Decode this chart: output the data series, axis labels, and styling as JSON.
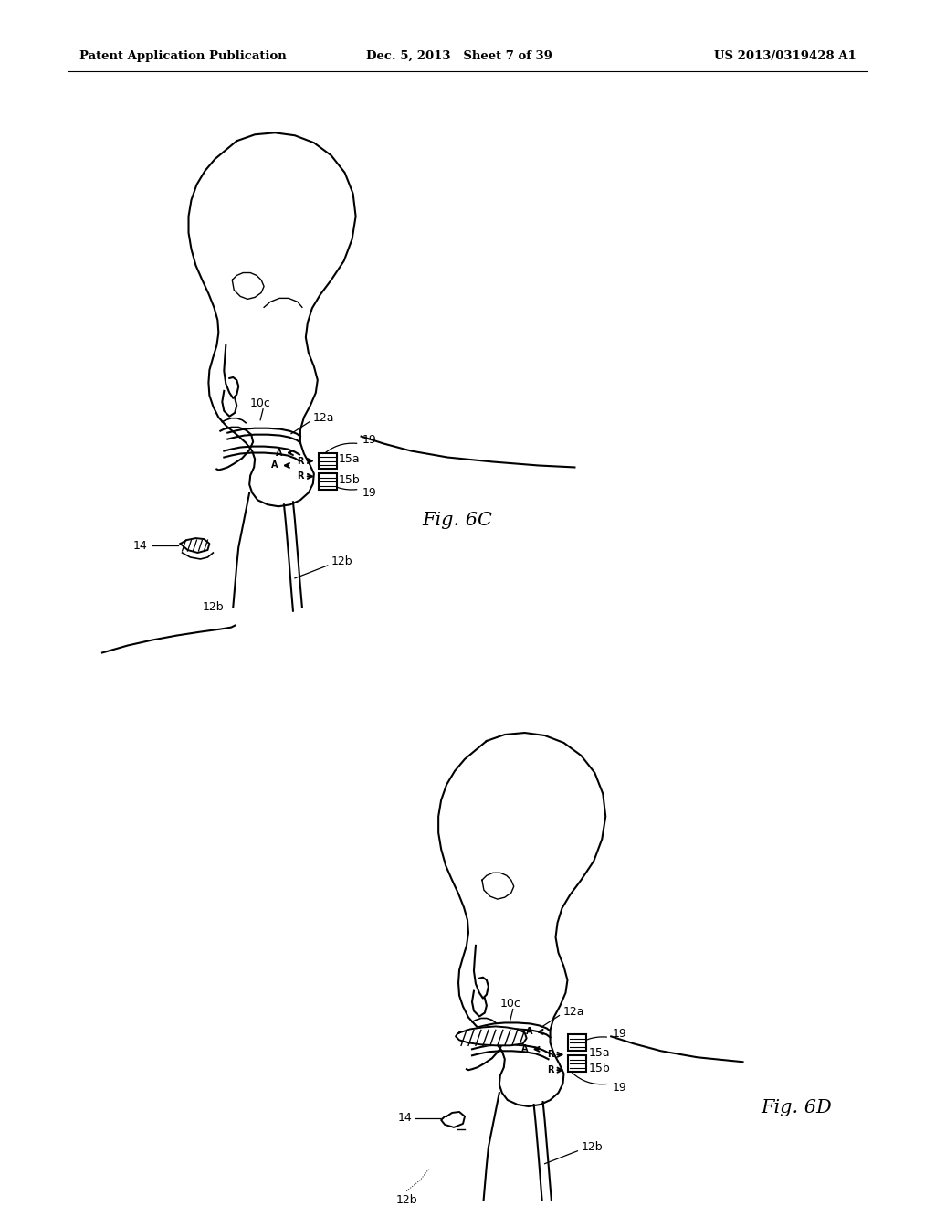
{
  "bg_color": "#ffffff",
  "line_color": "#000000",
  "header_left": "Patent Application Publication",
  "header_mid": "Dec. 5, 2013   Sheet 7 of 39",
  "header_right": "US 2013/0319428 A1",
  "fig_label_C": "Fig. 6C",
  "fig_label_D": "Fig. 6D"
}
